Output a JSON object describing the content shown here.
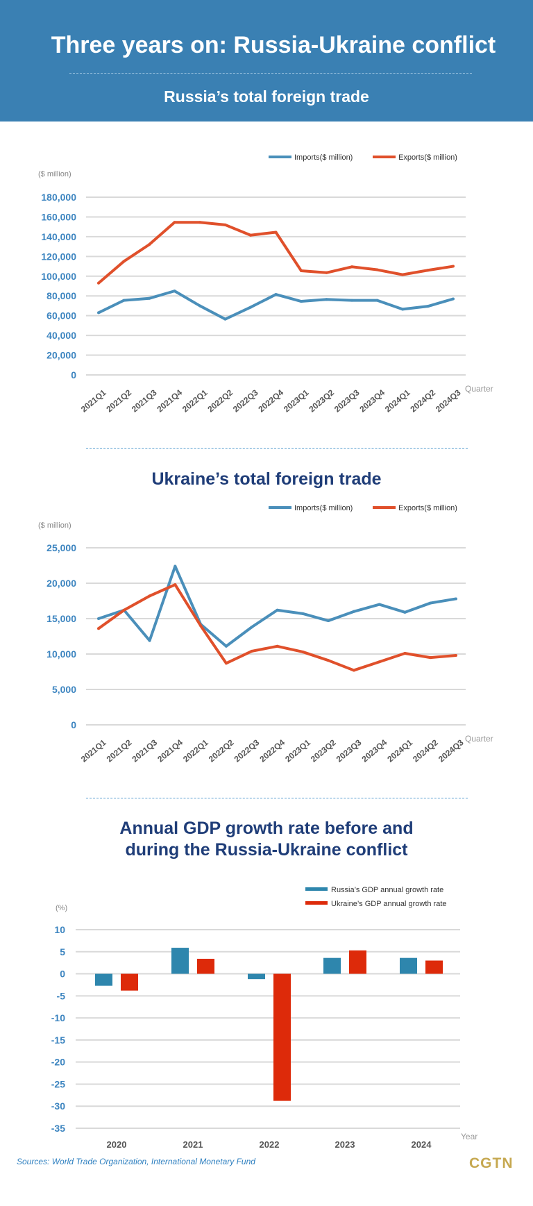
{
  "header": {
    "title": "Three years on: Russia-Ukraine conflict",
    "subtitle": "Russia’s total foreign trade"
  },
  "colors": {
    "header": "#3a80b3",
    "imports": "#4a8fba",
    "exports": "#e0502b",
    "russia_gdp": "#2e86ad",
    "ukraine_gdp": "#dd2a0a",
    "axis_labels": "#3d85c0"
  },
  "chart_data": [
    {
      "type": "line",
      "title": "Russia’s total foreign trade",
      "ylabel": "($ million)",
      "xlabel": "Quarter",
      "ylim": [
        0,
        180000
      ],
      "yticks": [
        "0",
        "20,000",
        "40,000",
        "60,000",
        "80,000",
        "100,000",
        "120,000",
        "140,000",
        "160,000",
        "180,000"
      ],
      "grid": true,
      "legend": "top-right",
      "categories": [
        "2021Q1",
        "2021Q2",
        "2021Q3",
        "2021Q4",
        "2022Q1",
        "2022Q2",
        "2022Q3",
        "2022Q4",
        "2023Q1",
        "2023Q2",
        "2023Q3",
        "2023Q4",
        "2024Q1",
        "2024Q2",
        "2024Q3"
      ],
      "series": [
        {
          "name": "Imports($ million)",
          "values": [
            63000,
            75500,
            77500,
            85000,
            70000,
            56500,
            68500,
            81500,
            74500,
            76500,
            75500,
            75500,
            66500,
            69500,
            77000
          ]
        },
        {
          "name": "Exports($ million)",
          "values": [
            93000,
            115000,
            132000,
            154500,
            154500,
            152000,
            141500,
            144500,
            105500,
            103500,
            109500,
            106500,
            101500,
            106000,
            110000
          ]
        }
      ]
    },
    {
      "type": "line",
      "title": "Ukraine’s total foreign trade",
      "ylabel": "($ million)",
      "xlabel": "Quarter",
      "ylim": [
        0,
        25000
      ],
      "yticks": [
        "0",
        "5,000",
        "10,000",
        "15,000",
        "20,000",
        "25,000"
      ],
      "grid": true,
      "legend": "top-right",
      "categories": [
        "2021Q1",
        "2021Q2",
        "2021Q3",
        "2021Q4",
        "2022Q1",
        "2022Q2",
        "2022Q3",
        "2022Q4",
        "2023Q1",
        "2023Q2",
        "2023Q3",
        "2023Q4",
        "2024Q1",
        "2024Q2",
        "2024Q3"
      ],
      "series": [
        {
          "name": "Imports($ million)",
          "values": [
            15000,
            16200,
            11900,
            22400,
            14200,
            11100,
            13800,
            16200,
            15700,
            14700,
            16000,
            17000,
            15900,
            17200,
            17800
          ]
        },
        {
          "name": "Exports($ million)",
          "values": [
            13600,
            16200,
            18200,
            19800,
            14000,
            8700,
            10400,
            11100,
            10300,
            9100,
            7700,
            8900,
            10100,
            9500,
            9800
          ]
        }
      ]
    },
    {
      "type": "bar",
      "title": "Annual GDP growth rate before and during the Russia-Ukraine conflict",
      "title_lines": [
        "Annual GDP growth rate before and",
        "during the Russia-Ukraine conflict"
      ],
      "ylabel": "(%)",
      "xlabel": "Year",
      "ylim": [
        -35,
        10
      ],
      "yticks": [
        "-35",
        "-30",
        "-25",
        "-20",
        "-15",
        "-10",
        "-5",
        "0",
        "5",
        "10"
      ],
      "grid": true,
      "legend": "top-right",
      "categories": [
        "2020",
        "2021",
        "2022",
        "2023",
        "2024"
      ],
      "series": [
        {
          "name": "Russia’s GDP annual growth rate",
          "values": [
            -2.7,
            5.9,
            -1.2,
            3.6,
            3.6
          ]
        },
        {
          "name": "Ukraine’s GDP annual growth rate",
          "values": [
            -3.8,
            3.4,
            -28.8,
            5.3,
            3.0
          ]
        }
      ]
    }
  ],
  "footer": {
    "sources": "Sources: World Trade Organization, International Monetary Fund",
    "logo": "CGTN"
  }
}
